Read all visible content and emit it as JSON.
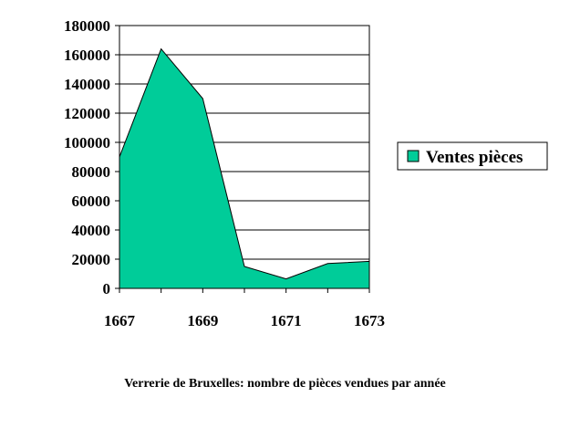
{
  "chart_data": {
    "type": "area",
    "x": [
      1667,
      1668,
      1669,
      1670,
      1671,
      1672,
      1673
    ],
    "series": [
      {
        "name": "Ventes pièces",
        "values": [
          90000,
          164000,
          130000,
          15000,
          6500,
          17000,
          18500
        ]
      }
    ],
    "x_tick_labels": [
      "1667",
      "1669",
      "1671",
      "1673"
    ],
    "y_tick_labels": [
      "0",
      "20000",
      "40000",
      "60000",
      "80000",
      "100000",
      "120000",
      "140000",
      "160000",
      "180000"
    ],
    "ylim": [
      0,
      180000
    ],
    "xlim": [
      1667,
      1673
    ],
    "grid": true,
    "legend": "right",
    "fill_color": "#00cc99",
    "caption": "Verrerie de Bruxelles: nombre de pièces vendues par année"
  }
}
